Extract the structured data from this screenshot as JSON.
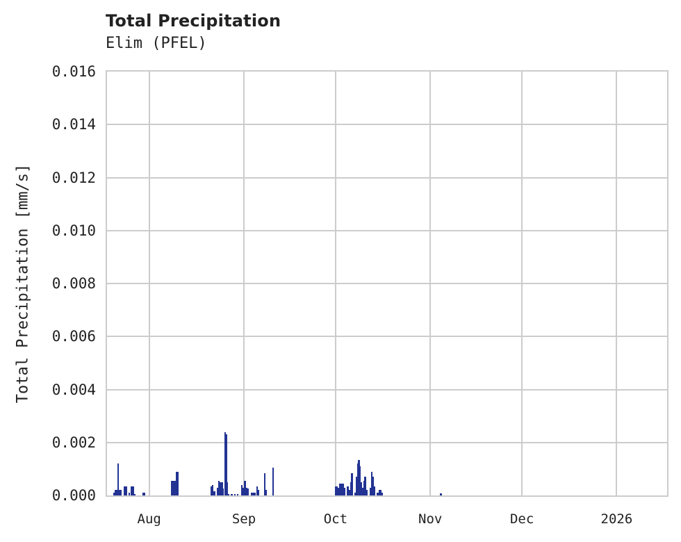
{
  "chart_data": {
    "type": "bar",
    "title": "Total Precipitation",
    "subtitle": "Elim (PFEL)",
    "xlabel": "",
    "ylabel": "Total Precipitation [mm/s]",
    "ylim": [
      0,
      0.016
    ],
    "grid": true,
    "legend": null,
    "color": "#233393",
    "yticks": [
      "0.000",
      "0.002",
      "0.004",
      "0.006",
      "0.008",
      "0.010",
      "0.012",
      "0.014",
      "0.016"
    ],
    "xticks": [
      "Aug",
      "Sep",
      "Oct",
      "Nov",
      "Dec",
      "2026"
    ],
    "xrange_days_from_aug1": [
      -13.8,
      169.5
    ],
    "xtick_days_from_aug1": [
      0,
      31,
      61,
      92,
      122,
      153
    ],
    "series": [
      {
        "name": "Total Precipitation",
        "points_day_value": [
          [
            -11.5,
            0.0001
          ],
          [
            -11.0,
            0.0002
          ],
          [
            -10.5,
            0.0002
          ],
          [
            -10.2,
            0.0012
          ],
          [
            -9.8,
            0.0002
          ],
          [
            -9.3,
            0.0002
          ],
          [
            -8.0,
            0.00035
          ],
          [
            -7.5,
            0.00035
          ],
          [
            -6.5,
            0.0001
          ],
          [
            -5.8,
            0.00035
          ],
          [
            -5.3,
            0.00035
          ],
          [
            -4.8,
            5e-05
          ],
          [
            -2.0,
            0.0001
          ],
          [
            -1.5,
            0.0001
          ],
          [
            7.5,
            0.00055
          ],
          [
            8.0,
            0.00055
          ],
          [
            8.5,
            0.00055
          ],
          [
            9.0,
            0.0009
          ],
          [
            9.4,
            0.0009
          ],
          [
            20.3,
            0.00035
          ],
          [
            20.8,
            0.0004
          ],
          [
            21.3,
            0.00015
          ],
          [
            22.3,
            0.0003
          ],
          [
            22.8,
            0.00055
          ],
          [
            23.3,
            0.0005
          ],
          [
            23.8,
            0.0005
          ],
          [
            24.2,
            0.00025
          ],
          [
            24.8,
            0.0024
          ],
          [
            25.2,
            0.0023
          ],
          [
            25.6,
            0.0005
          ],
          [
            26.0,
            5e-05
          ],
          [
            27.0,
            5e-05
          ],
          [
            28.0,
            5e-05
          ],
          [
            29.0,
            5e-05
          ],
          [
            30.3,
            0.0004
          ],
          [
            30.8,
            0.0003
          ],
          [
            31.3,
            0.00055
          ],
          [
            31.8,
            0.0003
          ],
          [
            32.3,
            0.00025
          ],
          [
            33.5,
            0.0001
          ],
          [
            34.0,
            0.0001
          ],
          [
            34.5,
            0.0001
          ],
          [
            35.3,
            0.00035
          ],
          [
            35.8,
            0.0002
          ],
          [
            37.8,
            0.00085
          ],
          [
            38.3,
            0.0002
          ],
          [
            40.5,
            0.00105
          ],
          [
            61.0,
            0.00035
          ],
          [
            61.5,
            0.00035
          ],
          [
            62.0,
            0.0003
          ],
          [
            62.5,
            0.00045
          ],
          [
            63.0,
            0.00045
          ],
          [
            63.5,
            0.00045
          ],
          [
            64.0,
            0.0003
          ],
          [
            65.0,
            0.00035
          ],
          [
            65.5,
            0.0002
          ],
          [
            66.0,
            0.0005
          ],
          [
            66.4,
            0.00085
          ],
          [
            67.5,
            0.0001
          ],
          [
            68.0,
            0.0007
          ],
          [
            68.3,
            0.0012
          ],
          [
            68.6,
            0.00135
          ],
          [
            69.0,
            0.0011
          ],
          [
            69.4,
            0.0005
          ],
          [
            69.8,
            0.0003
          ],
          [
            70.3,
            0.00055
          ],
          [
            70.7,
            0.0007
          ],
          [
            71.1,
            0.0002
          ],
          [
            72.5,
            0.0003
          ],
          [
            72.9,
            0.0009
          ],
          [
            73.3,
            0.0007
          ],
          [
            73.7,
            0.00035
          ],
          [
            74.8,
            0.0001
          ],
          [
            75.3,
            0.0002
          ],
          [
            75.8,
            0.0002
          ],
          [
            76.2,
            0.0001
          ],
          [
            95.5,
            8e-05
          ]
        ]
      }
    ]
  }
}
